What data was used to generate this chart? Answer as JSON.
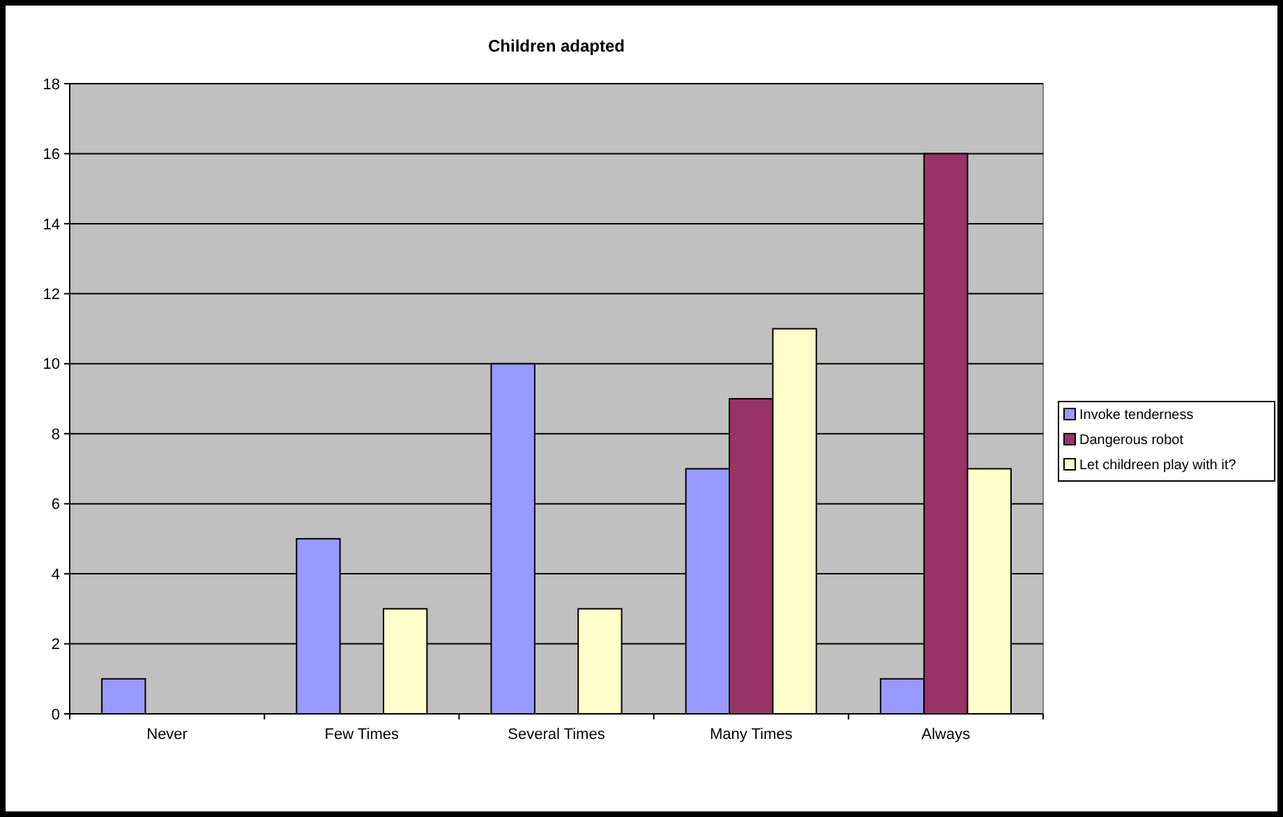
{
  "chart_data": {
    "type": "bar",
    "title": "Children adapted",
    "categories": [
      "Never",
      "Few Times",
      "Several Times",
      "Many Times",
      "Always"
    ],
    "series": [
      {
        "name": "Invoke tenderness",
        "color": "#9999ff",
        "values": [
          1,
          5,
          10,
          7,
          1
        ]
      },
      {
        "name": "Dangerous robot",
        "color": "#993366",
        "values": [
          0,
          0,
          0,
          9,
          16
        ]
      },
      {
        "name": "Let childreen play with it?",
        "color": "#ffffcc",
        "values": [
          0,
          3,
          3,
          11,
          7
        ]
      }
    ],
    "ylim": [
      0,
      18
    ],
    "yticks": [
      0,
      2,
      4,
      6,
      8,
      10,
      12,
      14,
      16,
      18
    ],
    "grid": "y",
    "legend": "right"
  }
}
